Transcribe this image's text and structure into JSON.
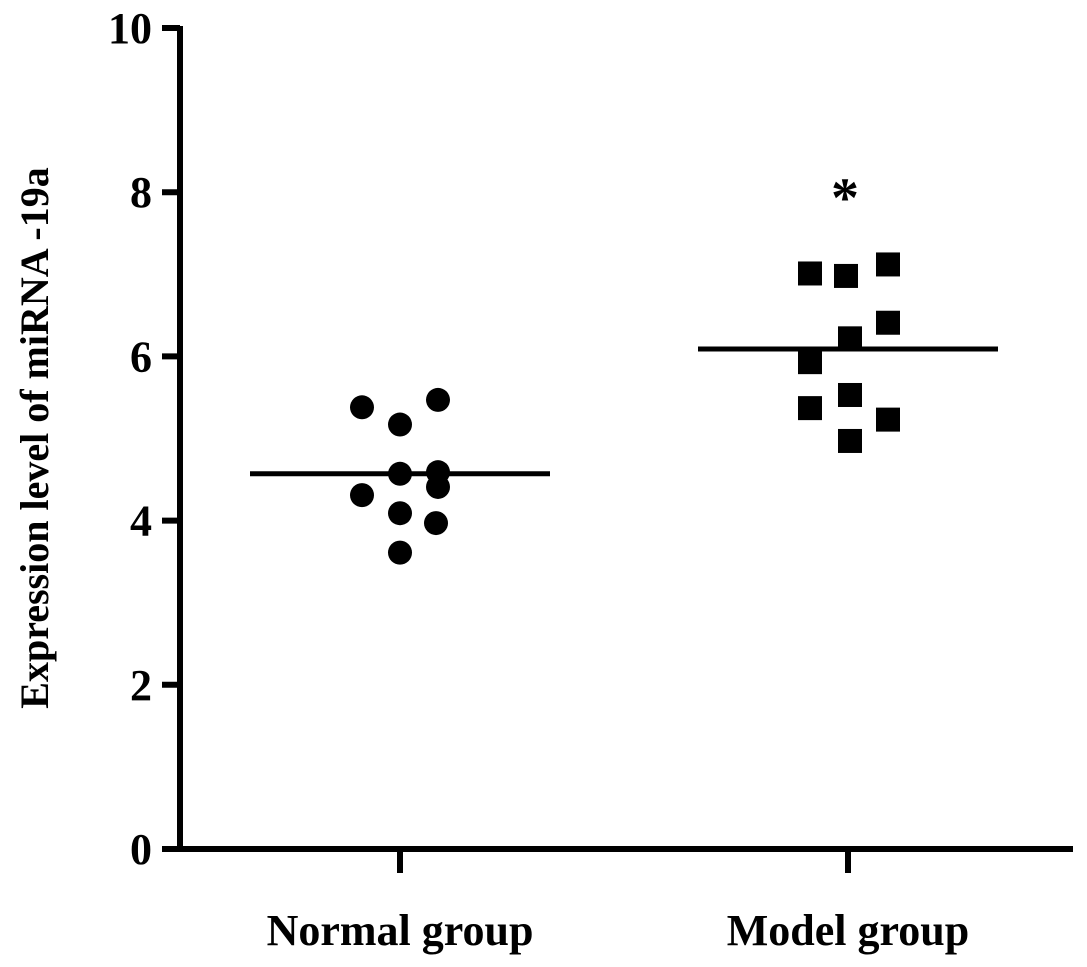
{
  "chart_data": {
    "type": "scatter",
    "ylabel": "Expression level of miRNA -19a",
    "ylim": [
      0,
      10
    ],
    "yticks": [
      "0",
      "2",
      "4",
      "6",
      "8",
      "10"
    ],
    "categories": [
      "Normal group",
      "Model group"
    ],
    "series": [
      {
        "marker": "circle",
        "values": [
          5.38,
          5.47,
          5.17,
          4.57,
          4.59,
          4.41,
          4.31,
          4.09,
          3.97,
          3.61
        ],
        "mean": 4.57
      },
      {
        "marker": "square",
        "values": [
          7.01,
          6.98,
          7.12,
          6.41,
          6.22,
          5.93,
          5.53,
          5.37,
          5.23,
          4.97
        ],
        "mean": 6.09,
        "annotation": "*"
      }
    ],
    "grid": false,
    "legend": "none"
  }
}
